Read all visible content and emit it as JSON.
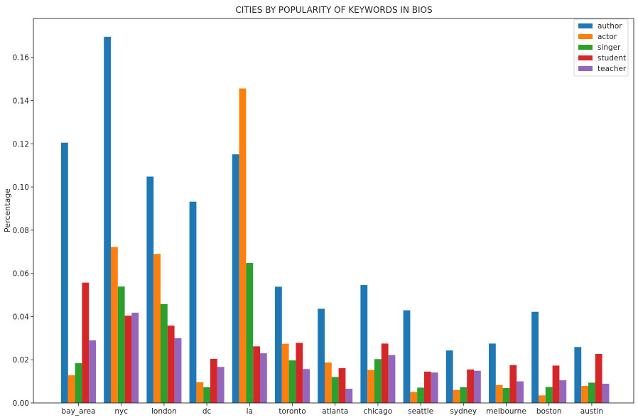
{
  "chart_data": {
    "type": "bar",
    "title": "CITIES BY POPULARITY OF KEYWORDS IN BIOS",
    "xlabel": "",
    "ylabel": "Percentage",
    "ylim": [
      0,
      0.178
    ],
    "yticks": [
      "0.00",
      "0.02",
      "0.04",
      "0.06",
      "0.08",
      "0.10",
      "0.12",
      "0.14",
      "0.16"
    ],
    "grid": false,
    "legend_position": "top-right",
    "categories": [
      "bay_area",
      "nyc",
      "london",
      "dc",
      "la",
      "toronto",
      "atlanta",
      "chicago",
      "seattle",
      "sydney",
      "melbourne",
      "boston",
      "austin"
    ],
    "series": [
      {
        "name": "author",
        "color": "#1f77b4",
        "values": [
          0.1205,
          0.1695,
          0.1048,
          0.0932,
          0.1151,
          0.0538,
          0.0436,
          0.0546,
          0.0429,
          0.0243,
          0.0275,
          0.0422,
          0.0259
        ]
      },
      {
        "name": "actor",
        "color": "#ff7f0e",
        "values": [
          0.0128,
          0.0722,
          0.069,
          0.0096,
          0.1456,
          0.0274,
          0.0187,
          0.0153,
          0.0051,
          0.006,
          0.0083,
          0.0035,
          0.0079
        ]
      },
      {
        "name": "singer",
        "color": "#2ca02c",
        "values": [
          0.0184,
          0.0539,
          0.0458,
          0.0073,
          0.0648,
          0.0197,
          0.012,
          0.0203,
          0.0071,
          0.0073,
          0.0069,
          0.0074,
          0.0094
        ]
      },
      {
        "name": "student",
        "color": "#d62728",
        "values": [
          0.0557,
          0.0404,
          0.0358,
          0.0204,
          0.0262,
          0.0278,
          0.0161,
          0.0275,
          0.0145,
          0.0155,
          0.0175,
          0.0173,
          0.0227
        ]
      },
      {
        "name": "teacher",
        "color": "#9467bd",
        "values": [
          0.029,
          0.0418,
          0.03,
          0.0167,
          0.023,
          0.0157,
          0.0066,
          0.0222,
          0.0141,
          0.0149,
          0.01,
          0.0105,
          0.0089
        ]
      }
    ]
  }
}
